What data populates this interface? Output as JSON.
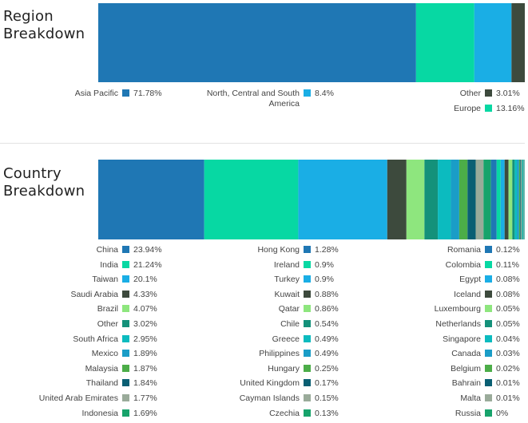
{
  "region": {
    "title_line1": "Region",
    "title_line2": "Breakdown",
    "bar_order": [
      "Asia Pacific",
      "Europe",
      "North, Central and South America",
      "Other"
    ],
    "legend": [
      {
        "label": "Asia Pacific",
        "value": "71.78%",
        "color": "#1f77b4"
      },
      {
        "label": "North, Central and South America",
        "value": "8.4%",
        "color": "#1aaee5"
      },
      {
        "label": "Other",
        "value": "3.01%",
        "color": "#3d4a3d"
      },
      {
        "label": "Europe",
        "value": "13.16%",
        "color": "#07d8a3"
      }
    ]
  },
  "country": {
    "title_line1": "Country",
    "title_line2": "Breakdown",
    "columns": [
      [
        {
          "label": "China",
          "value": "23.94%",
          "color": "#1f77b4"
        },
        {
          "label": "India",
          "value": "21.24%",
          "color": "#07d8a3"
        },
        {
          "label": "Taiwan",
          "value": "20.1%",
          "color": "#1aaee5"
        },
        {
          "label": "Saudi Arabia",
          "value": "4.33%",
          "color": "#3d4a3d"
        },
        {
          "label": "Brazil",
          "value": "4.07%",
          "color": "#8ee67e"
        },
        {
          "label": "Other",
          "value": "3.02%",
          "color": "#14917a"
        },
        {
          "label": "South Africa",
          "value": "2.95%",
          "color": "#0bbbbf"
        },
        {
          "label": "Mexico",
          "value": "1.89%",
          "color": "#1a9dc7"
        },
        {
          "label": "Malaysia",
          "value": "1.87%",
          "color": "#4cad48"
        },
        {
          "label": "Thailand",
          "value": "1.84%",
          "color": "#0a5f73"
        },
        {
          "label": "United Arab Emirates",
          "value": "1.77%",
          "color": "#9aab9a"
        },
        {
          "label": "Indonesia",
          "value": "1.69%",
          "color": "#17a36b"
        }
      ],
      [
        {
          "label": "Hong Kong",
          "value": "1.28%",
          "color": "#1f77b4"
        },
        {
          "label": "Ireland",
          "value": "0.9%",
          "color": "#07d8a3"
        },
        {
          "label": "Turkey",
          "value": "0.9%",
          "color": "#1aaee5"
        },
        {
          "label": "Kuwait",
          "value": "0.88%",
          "color": "#3d4a3d"
        },
        {
          "label": "Qatar",
          "value": "0.86%",
          "color": "#8ee67e"
        },
        {
          "label": "Chile",
          "value": "0.54%",
          "color": "#14917a"
        },
        {
          "label": "Greece",
          "value": "0.49%",
          "color": "#0bbbbf"
        },
        {
          "label": "Philippines",
          "value": "0.49%",
          "color": "#1a9dc7"
        },
        {
          "label": "Hungary",
          "value": "0.25%",
          "color": "#4cad48"
        },
        {
          "label": "United Kingdom",
          "value": "0.17%",
          "color": "#0a5f73"
        },
        {
          "label": "Cayman Islands",
          "value": "0.15%",
          "color": "#9aab9a"
        },
        {
          "label": "Czechia",
          "value": "0.13%",
          "color": "#17a36b"
        }
      ],
      [
        {
          "label": "Romania",
          "value": "0.12%",
          "color": "#1f77b4"
        },
        {
          "label": "Colombia",
          "value": "0.11%",
          "color": "#07d8a3"
        },
        {
          "label": "Egypt",
          "value": "0.08%",
          "color": "#1aaee5"
        },
        {
          "label": "Iceland",
          "value": "0.08%",
          "color": "#3d4a3d"
        },
        {
          "label": "Luxembourg",
          "value": "0.05%",
          "color": "#8ee67e"
        },
        {
          "label": "Netherlands",
          "value": "0.05%",
          "color": "#14917a"
        },
        {
          "label": "Singapore",
          "value": "0.04%",
          "color": "#0bbbbf"
        },
        {
          "label": "Canada",
          "value": "0.03%",
          "color": "#1a9dc7"
        },
        {
          "label": "Belgium",
          "value": "0.02%",
          "color": "#4cad48"
        },
        {
          "label": "Bahrain",
          "value": "0.01%",
          "color": "#0a5f73"
        },
        {
          "label": "Malta",
          "value": "0.01%",
          "color": "#9aab9a"
        },
        {
          "label": "Russia",
          "value": "0%",
          "color": "#17a36b"
        }
      ]
    ]
  },
  "chart_data": [
    {
      "type": "bar",
      "orientation": "horizontal-stacked",
      "title": "Region Breakdown",
      "categories": [
        "Asia Pacific",
        "Europe",
        "North, Central and South America",
        "Other"
      ],
      "values": [
        71.78,
        13.16,
        8.4,
        3.01
      ],
      "unit": "%"
    },
    {
      "type": "bar",
      "orientation": "horizontal-stacked",
      "title": "Country Breakdown",
      "categories": [
        "China",
        "India",
        "Taiwan",
        "Saudi Arabia",
        "Brazil",
        "Other",
        "South Africa",
        "Mexico",
        "Malaysia",
        "Thailand",
        "United Arab Emirates",
        "Indonesia",
        "Hong Kong",
        "Ireland",
        "Turkey",
        "Kuwait",
        "Qatar",
        "Chile",
        "Greece",
        "Philippines",
        "Hungary",
        "United Kingdom",
        "Cayman Islands",
        "Czechia",
        "Romania",
        "Colombia",
        "Egypt",
        "Iceland",
        "Luxembourg",
        "Netherlands",
        "Singapore",
        "Canada",
        "Belgium",
        "Bahrain",
        "Malta",
        "Russia"
      ],
      "values": [
        23.94,
        21.24,
        20.1,
        4.33,
        4.07,
        3.02,
        2.95,
        1.89,
        1.87,
        1.84,
        1.77,
        1.69,
        1.28,
        0.9,
        0.9,
        0.88,
        0.86,
        0.54,
        0.49,
        0.49,
        0.25,
        0.17,
        0.15,
        0.13,
        0.12,
        0.11,
        0.08,
        0.08,
        0.05,
        0.05,
        0.04,
        0.03,
        0.02,
        0.01,
        0.01,
        0
      ],
      "unit": "%"
    }
  ]
}
